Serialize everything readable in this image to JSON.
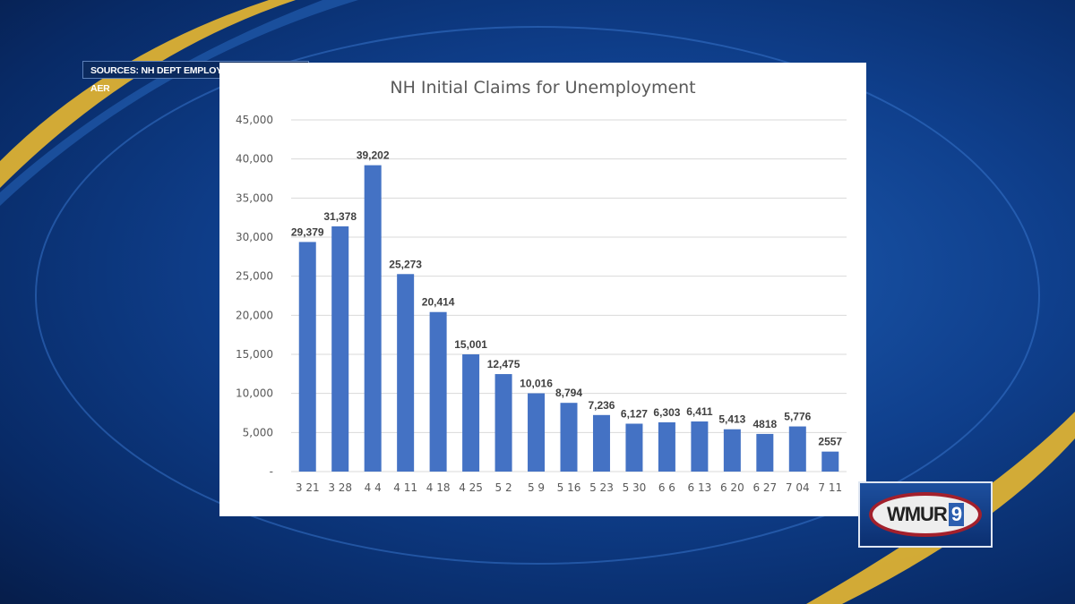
{
  "source_banner": "SOURCES: NH DEPT EMPLOYMENT SECURITY - AER",
  "logo": {
    "text": "WMUR",
    "number": "9"
  },
  "colors": {
    "bar": "#4472c4",
    "grid": "#d9d9d9",
    "background": "#0f3f8c",
    "accent": "#e8b830"
  },
  "chart_data": {
    "type": "bar",
    "title": "NH Initial Claims for Unemployment",
    "xlabel": "",
    "ylabel": "",
    "ylim": [
      0,
      45000
    ],
    "grid": true,
    "yticks": [
      "-",
      "5,000",
      "10,000",
      "15,000",
      "20,000",
      "25,000",
      "30,000",
      "35,000",
      "40,000",
      "45,000"
    ],
    "categories": [
      "3 21",
      "3 28",
      "4 4",
      "4 11",
      "4 18",
      "4 25",
      "5 2",
      "5 9",
      "5 16",
      "5 23",
      "5 30",
      "6 6",
      "6 13",
      "6 20",
      "6 27",
      "7 04",
      "7 11"
    ],
    "values": [
      29379,
      31378,
      39202,
      25273,
      20414,
      15001,
      12475,
      10016,
      8794,
      7236,
      6127,
      6303,
      6411,
      5413,
      4818,
      5776,
      2557
    ],
    "data_labels": [
      "29,379",
      "31,378",
      "39,202",
      "25,273",
      "20,414",
      "15,001",
      "12,475",
      "10,016",
      "8,794",
      "7,236",
      "6,127",
      "6,303",
      "6,411",
      "5,413",
      "4818",
      "5,776",
      "2557"
    ]
  }
}
